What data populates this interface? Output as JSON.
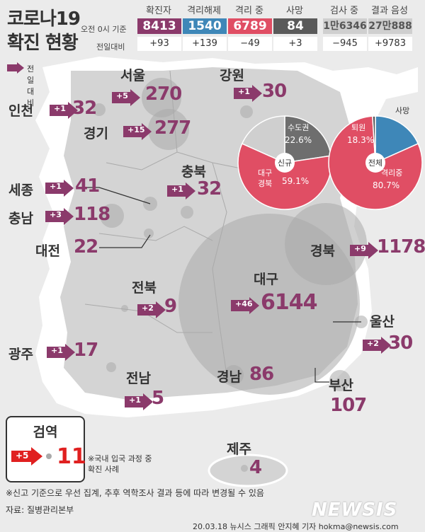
{
  "header": {
    "title_line1": "코로나19",
    "title_line2": "확진 현황",
    "row1_label": "오전 0시 기준",
    "row2_label": "전일대비",
    "stats": [
      {
        "head": "확진자",
        "value": "8413",
        "diff": "+93",
        "color": "#8b3a6b"
      },
      {
        "head": "격리해제",
        "value": "1540",
        "diff": "+139",
        "color": "#3e87b8"
      },
      {
        "head": "격리 중",
        "value": "6789",
        "diff": "−49",
        "color": "#e04e64"
      },
      {
        "head": "사망",
        "value": "84",
        "diff": "+3",
        "color": "#5a5a5a"
      },
      {
        "head": "검사 중",
        "value": "1만6346",
        "diff": "−945",
        "color": "#cfcfcf"
      },
      {
        "head": "결과 음성",
        "value": "27만888",
        "diff": "+9783",
        "color": "#cfcfcf"
      }
    ]
  },
  "legend": {
    "label": "전일대비"
  },
  "regions": [
    {
      "name": "서울",
      "diff": "+5",
      "total": "270"
    },
    {
      "name": "강원",
      "diff": "+1",
      "total": "30"
    },
    {
      "name": "인천",
      "diff": "+1",
      "total": "32"
    },
    {
      "name": "경기",
      "diff": "+15",
      "total": "277"
    },
    {
      "name": "충북",
      "diff": "+1",
      "total": "32"
    },
    {
      "name": "세종",
      "diff": "+1",
      "total": "41"
    },
    {
      "name": "충남",
      "diff": "+3",
      "total": "118"
    },
    {
      "name": "대전",
      "diff": "",
      "total": "22"
    },
    {
      "name": "경북",
      "diff": "+9",
      "total": "1178"
    },
    {
      "name": "대구",
      "diff": "+46",
      "total": "6144"
    },
    {
      "name": "전북",
      "diff": "+2",
      "total": "9"
    },
    {
      "name": "울산",
      "diff": "+2",
      "total": "30"
    },
    {
      "name": "광주",
      "diff": "+1",
      "total": "17"
    },
    {
      "name": "경남",
      "diff": "",
      "total": "86"
    },
    {
      "name": "부산",
      "diff": "",
      "total": "107"
    },
    {
      "name": "전남",
      "diff": "+1",
      "total": "5"
    },
    {
      "name": "제주",
      "diff": "",
      "total": "4"
    }
  ],
  "quarantine": {
    "title": "검역",
    "diff": "+5",
    "total": "11",
    "note_line1": "※국내 입국 과정 중",
    "note_line2": "확진 사례"
  },
  "pie_new": {
    "center": "신규",
    "slices": [
      {
        "label1": "수도권",
        "label2": "",
        "value": 22.6,
        "value_text": "22.6%",
        "color": "#6e6e6e"
      },
      {
        "label1": "대구",
        "label2": "경북",
        "value": 59.1,
        "value_text": "59.1%",
        "color": "#e04e64"
      },
      {
        "label1": "",
        "label2": "",
        "value": 18.3,
        "value_text": "",
        "color": "#cfcfcf"
      }
    ]
  },
  "pie_total": {
    "center": "전체",
    "slices": [
      {
        "label1": "퇴원",
        "value": 18.3,
        "value_text": "18.3%",
        "color": "#3e87b8"
      },
      {
        "label1": "격리중",
        "value": 80.7,
        "value_text": "80.7%",
        "color": "#e04e64"
      },
      {
        "label1": "사망",
        "value": 1.0,
        "value_text": "",
        "color": "#5a5a5a"
      }
    ]
  },
  "footer": {
    "note": "※신고 기준으로 우선 집계, 추후 역학조사 결과 등에 따라 변경될 수 있음",
    "source": "자료: 질병관리본부",
    "credit": "20.03.18 뉴시스 그래픽 안지혜 기자 hokma@newsis.com",
    "logo": "NEWSIS"
  },
  "colors": {
    "map_land": "#d2d2d2",
    "map_land_light": "#ffffff",
    "bubble": "#b9b9b9",
    "arrow": "#8b3a6b",
    "number": "#8b3a6b",
    "red": "#e02020"
  }
}
